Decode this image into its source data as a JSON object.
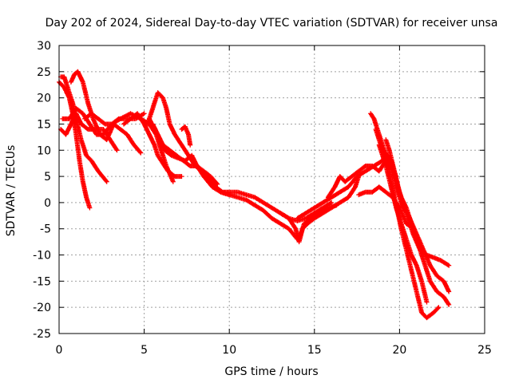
{
  "chart_data": {
    "type": "scatter",
    "title": "Day 202 of 2024, Sidereal Day-to-day VTEC variation (SDTVAR) for receiver unsa",
    "xlabel": "GPS time / hours",
    "ylabel": "SDTVAR / TECUs",
    "xlim": [
      0,
      25
    ],
    "ylim": [
      -25,
      30
    ],
    "xticks": [
      0,
      5,
      10,
      15,
      20,
      25
    ],
    "yticks": [
      -25,
      -20,
      -15,
      -10,
      -5,
      0,
      5,
      10,
      15,
      20,
      25,
      30
    ],
    "grid": true,
    "marker": "+",
    "color": "#ff0000",
    "series": [
      {
        "name": "s1",
        "points": [
          [
            0.0,
            23
          ],
          [
            0.3,
            22
          ],
          [
            0.6,
            20
          ],
          [
            0.8,
            17
          ],
          [
            1.0,
            13
          ],
          [
            1.2,
            8
          ],
          [
            1.4,
            4
          ],
          [
            1.6,
            1
          ],
          [
            1.8,
            -1
          ]
        ]
      },
      {
        "name": "s2",
        "points": [
          [
            0.1,
            24
          ],
          [
            0.3,
            24
          ],
          [
            0.5,
            22
          ],
          [
            0.8,
            19
          ],
          [
            1.0,
            16
          ],
          [
            1.3,
            12
          ],
          [
            1.6,
            9
          ],
          [
            1.9,
            8
          ],
          [
            2.3,
            6
          ],
          [
            2.8,
            4
          ]
        ]
      },
      {
        "name": "s3",
        "points": [
          [
            0.1,
            14
          ],
          [
            0.4,
            13
          ],
          [
            0.7,
            15
          ],
          [
            1.0,
            17
          ],
          [
            1.3,
            15
          ],
          [
            1.7,
            14
          ],
          [
            2.1,
            14
          ],
          [
            2.6,
            14
          ],
          [
            3.0,
            12
          ],
          [
            3.4,
            10
          ]
        ]
      },
      {
        "name": "s4",
        "points": [
          [
            0.2,
            16
          ],
          [
            0.6,
            16
          ],
          [
            1.0,
            18
          ],
          [
            1.4,
            17
          ],
          [
            1.8,
            15
          ],
          [
            2.2,
            13
          ],
          [
            2.6,
            13
          ],
          [
            3.1,
            15
          ],
          [
            3.5,
            16
          ],
          [
            4.0,
            16
          ],
          [
            4.5,
            16
          ],
          [
            5.0,
            17
          ]
        ]
      },
      {
        "name": "s5",
        "points": [
          [
            0.7,
            23
          ],
          [
            0.9,
            24.5
          ],
          [
            1.1,
            25
          ],
          [
            1.4,
            23
          ],
          [
            1.7,
            19
          ],
          [
            2.0,
            16
          ],
          [
            2.4,
            13
          ],
          [
            2.8,
            12
          ],
          [
            3.2,
            15
          ],
          [
            3.6,
            14
          ],
          [
            4.0,
            13
          ],
          [
            4.4,
            11
          ],
          [
            4.8,
            9.5
          ]
        ]
      },
      {
        "name": "s6",
        "points": [
          [
            1.5,
            16
          ],
          [
            1.9,
            17
          ],
          [
            2.3,
            16
          ],
          [
            2.7,
            15
          ],
          [
            3.1,
            15
          ],
          [
            3.6,
            16
          ],
          [
            4.2,
            17
          ],
          [
            4.8,
            16
          ],
          [
            5.3,
            15
          ],
          [
            5.7,
            13
          ],
          [
            6.0,
            10
          ],
          [
            6.3,
            7
          ],
          [
            6.7,
            4
          ]
        ]
      },
      {
        "name": "s7",
        "points": [
          [
            3.8,
            15
          ],
          [
            4.2,
            16
          ],
          [
            4.6,
            17
          ],
          [
            5.0,
            15
          ],
          [
            5.3,
            13
          ],
          [
            5.6,
            11
          ],
          [
            5.8,
            9
          ],
          [
            6.0,
            8
          ],
          [
            6.4,
            6
          ],
          [
            6.8,
            5
          ],
          [
            7.2,
            5
          ]
        ]
      },
      {
        "name": "s8",
        "points": [
          [
            5.2,
            15
          ],
          [
            5.5,
            18
          ],
          [
            5.8,
            21
          ],
          [
            6.1,
            20
          ],
          [
            6.3,
            18
          ],
          [
            6.5,
            15
          ],
          [
            6.8,
            13
          ],
          [
            7.2,
            11
          ],
          [
            7.6,
            9
          ],
          [
            8.0,
            7
          ],
          [
            8.4,
            6
          ],
          [
            8.8,
            4
          ]
        ]
      },
      {
        "name": "s9",
        "points": [
          [
            5.5,
            15
          ],
          [
            5.8,
            13
          ],
          [
            6.1,
            11
          ],
          [
            6.5,
            10
          ],
          [
            6.9,
            9
          ],
          [
            7.3,
            8
          ],
          [
            7.7,
            7
          ],
          [
            8.1,
            7
          ],
          [
            8.5,
            6
          ],
          [
            8.9,
            5
          ],
          [
            9.3,
            3.5
          ]
        ]
      },
      {
        "name": "s10",
        "points": [
          [
            5.3,
            16
          ],
          [
            5.6,
            14
          ],
          [
            5.9,
            12
          ],
          [
            6.2,
            10
          ],
          [
            6.6,
            9
          ],
          [
            7.0,
            8.5
          ],
          [
            7.4,
            8
          ],
          [
            7.8,
            9
          ],
          [
            8.1,
            7
          ],
          [
            8.5,
            5
          ],
          [
            9.0,
            3
          ],
          [
            9.5,
            2
          ],
          [
            10.0,
            1.5
          ]
        ]
      },
      {
        "name": "s11",
        "points": [
          [
            7.2,
            14
          ],
          [
            7.4,
            14.5
          ],
          [
            7.6,
            13
          ],
          [
            7.7,
            11
          ]
        ]
      },
      {
        "name": "s12",
        "points": [
          [
            8.8,
            5
          ],
          [
            9.2,
            3
          ],
          [
            9.6,
            2
          ],
          [
            10.0,
            2
          ],
          [
            10.5,
            2
          ],
          [
            11.0,
            1.5
          ],
          [
            11.5,
            1
          ],
          [
            12.0,
            0
          ],
          [
            12.5,
            -1
          ],
          [
            13.0,
            -2
          ],
          [
            13.5,
            -3
          ],
          [
            14.0,
            -3.5
          ],
          [
            14.5,
            -3
          ],
          [
            15.0,
            -2
          ],
          [
            15.5,
            -1
          ],
          [
            16.0,
            0
          ]
        ]
      },
      {
        "name": "s13",
        "points": [
          [
            9.5,
            2
          ],
          [
            10.0,
            1.5
          ],
          [
            10.5,
            1
          ],
          [
            11.0,
            0.5
          ],
          [
            11.5,
            -0.5
          ],
          [
            12.0,
            -1.5
          ],
          [
            12.5,
            -3
          ],
          [
            13.0,
            -4
          ],
          [
            13.5,
            -5
          ],
          [
            14.0,
            -7
          ],
          [
            14.2,
            -6
          ],
          [
            14.4,
            -4
          ],
          [
            14.8,
            -3
          ],
          [
            15.3,
            -2
          ],
          [
            15.8,
            -1
          ],
          [
            16.3,
            -0.5
          ]
        ]
      },
      {
        "name": "s14",
        "points": [
          [
            13.0,
            -2
          ],
          [
            13.5,
            -3
          ],
          [
            13.9,
            -5
          ],
          [
            14.1,
            -7.5
          ],
          [
            14.3,
            -5
          ],
          [
            14.6,
            -4
          ],
          [
            15.0,
            -3
          ],
          [
            15.5,
            -2
          ],
          [
            16.0,
            -1
          ],
          [
            16.5,
            0
          ],
          [
            17.0,
            1
          ],
          [
            17.4,
            3
          ],
          [
            17.6,
            5
          ]
        ]
      },
      {
        "name": "s15",
        "points": [
          [
            14.0,
            -3
          ],
          [
            14.5,
            -2
          ],
          [
            15.0,
            -1
          ],
          [
            15.5,
            0
          ],
          [
            16.0,
            1
          ],
          [
            16.5,
            2
          ],
          [
            17.0,
            3
          ],
          [
            17.5,
            5
          ],
          [
            18.0,
            6
          ],
          [
            18.5,
            7
          ],
          [
            19.0,
            8
          ],
          [
            19.2,
            9
          ]
        ]
      },
      {
        "name": "s16",
        "points": [
          [
            15.8,
            1
          ],
          [
            16.2,
            3
          ],
          [
            16.5,
            5
          ],
          [
            16.8,
            4
          ],
          [
            17.2,
            5
          ],
          [
            17.6,
            6
          ],
          [
            18.0,
            7
          ],
          [
            18.4,
            7
          ],
          [
            18.8,
            6
          ],
          [
            19.2,
            8
          ],
          [
            19.5,
            7
          ],
          [
            19.8,
            5
          ]
        ]
      },
      {
        "name": "s17",
        "points": [
          [
            17.6,
            1.5
          ],
          [
            18.0,
            2
          ],
          [
            18.4,
            2
          ],
          [
            18.8,
            3
          ],
          [
            19.2,
            2
          ],
          [
            19.6,
            1
          ],
          [
            20.0,
            -1
          ],
          [
            20.4,
            -4
          ],
          [
            20.6,
            -4.5
          ]
        ]
      },
      {
        "name": "s18",
        "points": [
          [
            18.3,
            17
          ],
          [
            18.5,
            16
          ],
          [
            18.7,
            14
          ],
          [
            18.9,
            12
          ],
          [
            19.1,
            10
          ],
          [
            19.3,
            8
          ],
          [
            19.5,
            4
          ],
          [
            19.7,
            1
          ],
          [
            19.9,
            -2
          ],
          [
            20.1,
            -5
          ],
          [
            20.4,
            -9
          ],
          [
            20.7,
            -13
          ],
          [
            21.0,
            -17
          ],
          [
            21.3,
            -21
          ],
          [
            21.6,
            -22
          ],
          [
            22.0,
            -21
          ],
          [
            22.3,
            -20
          ]
        ]
      },
      {
        "name": "s19",
        "points": [
          [
            18.6,
            14
          ],
          [
            18.8,
            12
          ],
          [
            19.0,
            10
          ],
          [
            19.3,
            9
          ],
          [
            19.5,
            8
          ],
          [
            19.7,
            6
          ],
          [
            19.9,
            3
          ],
          [
            20.1,
            1
          ],
          [
            20.4,
            -1
          ],
          [
            20.7,
            -4
          ],
          [
            21.0,
            -7
          ],
          [
            21.4,
            -11
          ],
          [
            21.8,
            -15
          ],
          [
            22.2,
            -17
          ],
          [
            22.6,
            -18
          ],
          [
            22.9,
            -19.5
          ]
        ]
      },
      {
        "name": "s20",
        "points": [
          [
            19.2,
            12
          ],
          [
            19.4,
            10
          ],
          [
            19.7,
            6
          ],
          [
            20.0,
            2
          ],
          [
            20.3,
            -1
          ],
          [
            20.6,
            -3
          ],
          [
            21.0,
            -6
          ],
          [
            21.4,
            -9
          ],
          [
            21.8,
            -12
          ],
          [
            22.2,
            -14
          ],
          [
            22.6,
            -15
          ],
          [
            22.9,
            -17
          ]
        ]
      },
      {
        "name": "s21",
        "points": [
          [
            19.3,
            9
          ],
          [
            19.5,
            7
          ],
          [
            19.8,
            3
          ],
          [
            20.1,
            0
          ],
          [
            20.4,
            -2
          ],
          [
            20.8,
            -6
          ],
          [
            21.2,
            -9
          ],
          [
            21.6,
            -10
          ],
          [
            22.0,
            -10.5
          ],
          [
            22.4,
            -11
          ],
          [
            22.9,
            -12
          ]
        ]
      },
      {
        "name": "s22",
        "points": [
          [
            18.8,
            11
          ],
          [
            19.0,
            9
          ],
          [
            19.2,
            7
          ],
          [
            19.5,
            3
          ],
          [
            19.8,
            -1
          ],
          [
            20.1,
            -4
          ],
          [
            20.4,
            -7
          ],
          [
            20.7,
            -10
          ],
          [
            21.0,
            -12
          ],
          [
            21.3,
            -15
          ],
          [
            21.6,
            -19
          ]
        ]
      }
    ]
  }
}
